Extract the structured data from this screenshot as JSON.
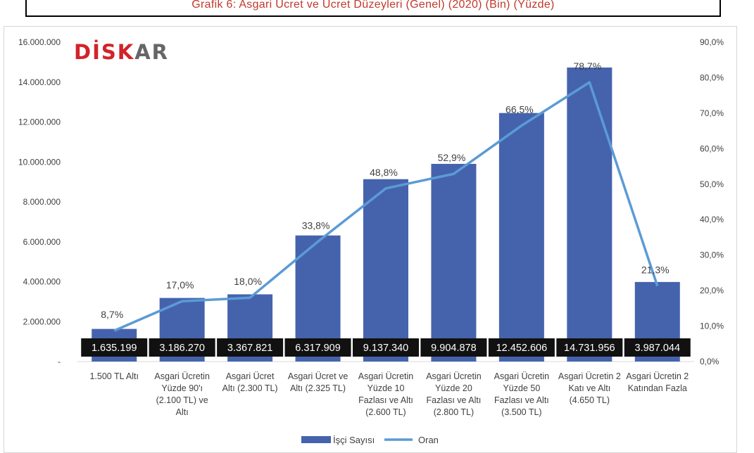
{
  "title": "Grafik 6: Asgari Ücret ve Ücret Düzeyleri (Genel) (2020) (Bin) (Yüzde)",
  "logo": {
    "main": "DİSK",
    "tail": "AR"
  },
  "colors": {
    "bar": "#4563ad",
    "line": "#5b9bd5",
    "title": "#c0392b",
    "label_bg": "#111111"
  },
  "chart_data": {
    "type": "bar",
    "categories": [
      [
        "1.500 TL Altı"
      ],
      [
        "Asgari Ücretin",
        "Yüzde 90'ı",
        "(2.100 TL) ve",
        "Altı"
      ],
      [
        "Asgari Ücret",
        "Altı (2.300 TL)"
      ],
      [
        "Asgari Ücret ve",
        "Altı (2.325 TL)"
      ],
      [
        "Asgari Ücretin",
        "Yüzde 10",
        "Fazlası ve Altı",
        "(2.600 TL)"
      ],
      [
        "Asgari Ücretin",
        "Yüzde 20",
        "Fazlası ve Altı",
        "(2.800 TL)"
      ],
      [
        "Asgari Ücretin",
        "Yüzde 50",
        "Fazlası ve Altı",
        "(3.500 TL)"
      ],
      [
        "Asgari Ücretin 2",
        "Katı ve Altı",
        "(4.650 TL)"
      ],
      [
        "Asgari Ücretin 2",
        "Katından Fazla"
      ]
    ],
    "series": [
      {
        "name": "İşçi Sayısı",
        "type": "bar",
        "axis": "left",
        "values": [
          1635199,
          3186270,
          3367821,
          6317909,
          9137340,
          9904878,
          12452606,
          14731956,
          3987044
        ],
        "labels": [
          "1.635.199",
          "3.186.270",
          "3.367.821",
          "6.317.909",
          "9.137.340",
          "9.904.878",
          "12.452.606",
          "14.731.956",
          "3.987.044"
        ]
      },
      {
        "name": "Oran",
        "type": "line",
        "axis": "right",
        "values": [
          8.7,
          17.0,
          18.0,
          33.8,
          48.8,
          52.9,
          66.5,
          78.7,
          21.3
        ],
        "labels": [
          "8,7%",
          "17,0%",
          "18,0%",
          "33,8%",
          "48,8%",
          "52,9%",
          "66,5%",
          "78,7%",
          "21,3%"
        ]
      }
    ],
    "y_left": {
      "ylim": [
        0,
        16000000
      ],
      "ticks": [
        0,
        2000000,
        4000000,
        6000000,
        8000000,
        10000000,
        12000000,
        14000000,
        16000000
      ],
      "tick_labels": [
        "-",
        "2.000.000",
        "4.000.000",
        "6.000.000",
        "8.000.000",
        "10.000.000",
        "12.000.000",
        "14.000.000",
        "16.000.000"
      ]
    },
    "y_right": {
      "ylim": [
        0,
        90
      ],
      "ticks": [
        0,
        10,
        20,
        30,
        40,
        50,
        60,
        70,
        80,
        90
      ],
      "tick_labels": [
        "0,0%",
        "10,0%",
        "20,0%",
        "30,0%",
        "40,0%",
        "50,0%",
        "60,0%",
        "70,0%",
        "80,0%",
        "90,0%"
      ]
    },
    "grid": false,
    "legend": {
      "position": "bottom",
      "entries": [
        "İşçi Sayısı",
        "Oran"
      ]
    }
  }
}
